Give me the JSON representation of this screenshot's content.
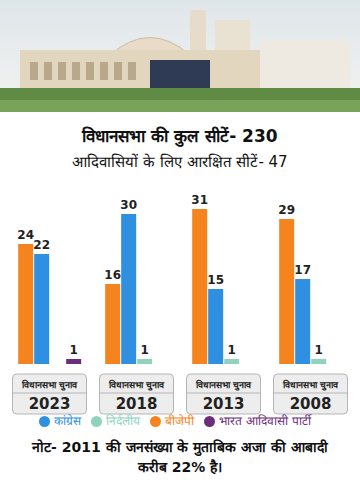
{
  "chart_data": {
    "type": "bar",
    "title": "विधानसभा की कुल सीटें- 230",
    "subtitle": "आदिवासियों के लिए आरक्षित सीटें- 47",
    "annotation": "नोट- 2011 की जनसंख्या के मुताबिक अजा की आबादी करीब 22% है।",
    "categories": [
      "विधानसभा चुनाव 2023",
      "विधानसभा चुनाव 2018",
      "विधानसभा चुनाव 2013",
      "विधानसभा चुनाव 2008"
    ],
    "series": [
      {
        "name": "बीजेपी",
        "color": "#f5841f",
        "values": [
          24,
          16,
          31,
          29
        ]
      },
      {
        "name": "कांग्रेस",
        "color": "#2f8fe0",
        "values": [
          22,
          30,
          15,
          17
        ]
      },
      {
        "name": "निर्दलीय",
        "color": "#8fd3bd",
        "values": [
          null,
          1,
          1,
          1
        ]
      },
      {
        "name": "भारत आदिवासी पार्टी",
        "color": "#6b2f7a",
        "values": [
          1,
          null,
          null,
          null
        ]
      }
    ],
    "ylim": [
      0,
      35
    ],
    "data_labels": true,
    "tick_labels": "x",
    "legend": "bottom"
  }
}
